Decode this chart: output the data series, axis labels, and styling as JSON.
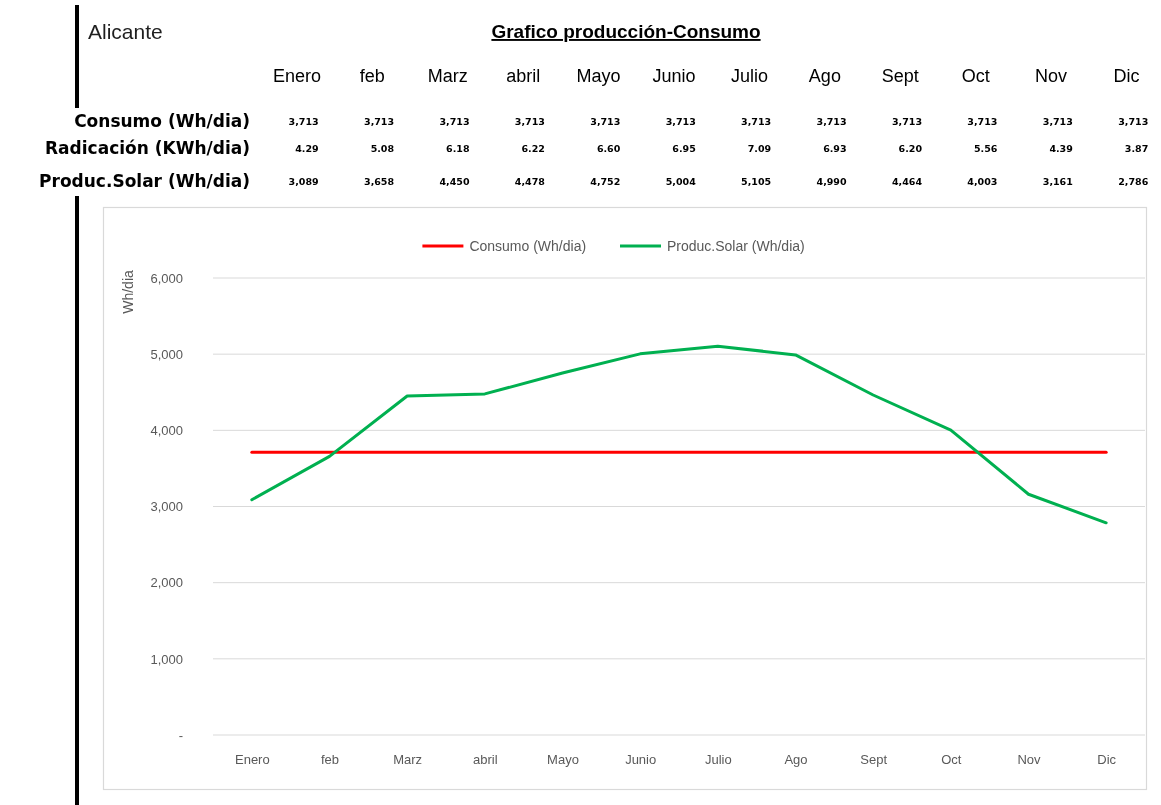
{
  "chart_data": [
    {
      "type": "heatmap",
      "title": "Grafico producción-Consumo",
      "subtitle": "Alicante",
      "categories": [
        "Enero",
        "feb",
        "Marz",
        "abril",
        "Mayo",
        "Junio",
        "Julio",
        "Ago",
        "Sept",
        "Oct",
        "Nov",
        "Dic"
      ],
      "y_categories": [
        "Consumo (Wh/dia)",
        "Radicación (KWh/dia)",
        "Produc.Solar (Wh/dia)"
      ],
      "cells": [
        [
          3713,
          3713,
          3713,
          3713,
          3713,
          3713,
          3713,
          3713,
          3713,
          3713,
          3713,
          3713
        ],
        [
          4.29,
          5.08,
          6.18,
          6.22,
          6.6,
          6.95,
          7.09,
          6.93,
          6.2,
          5.56,
          4.39,
          3.87
        ],
        [
          3089,
          3658,
          4450,
          4478,
          4752,
          5004,
          5105,
          4990,
          4464,
          4003,
          3161,
          2786
        ]
      ],
      "cell_labels": [
        [
          "3,713",
          "3,713",
          "3,713",
          "3,713",
          "3,713",
          "3,713",
          "3,713",
          "3,713",
          "3,713",
          "3,713",
          "3,713",
          "3,713"
        ],
        [
          "4.29",
          "5.08",
          "6.18",
          "6.22",
          "6.60",
          "6.95",
          "7.09",
          "6.93",
          "6.20",
          "5.56",
          "4.39",
          "3.87"
        ],
        [
          "3,089",
          "3,658",
          "4,450",
          "4,478",
          "4,752",
          "5,004",
          "5,105",
          "4,990",
          "4,464",
          "4,003",
          "3,161",
          "2,786"
        ]
      ]
    },
    {
      "type": "line",
      "ylabel": "Wh/dia",
      "categories": [
        "Enero",
        "feb",
        "Marz",
        "abril",
        "Mayo",
        "Junio",
        "Julio",
        "Ago",
        "Sept",
        "Oct",
        "Nov",
        "Dic"
      ],
      "series": [
        {
          "name": "Consumo (Wh/dia)",
          "color": "#ff0000",
          "values": [
            3713,
            3713,
            3713,
            3713,
            3713,
            3713,
            3713,
            3713,
            3713,
            3713,
            3713,
            3713
          ]
        },
        {
          "name": "Produc.Solar (Wh/dia)",
          "color": "#00b050",
          "values": [
            3089,
            3658,
            4450,
            4478,
            4752,
            5004,
            5105,
            4990,
            4464,
            4003,
            3161,
            2786
          ]
        }
      ],
      "ylim": [
        0,
        6000
      ],
      "yticks": [
        {
          "value": 0,
          "label": "-"
        },
        {
          "value": 1000,
          "label": "1,000"
        },
        {
          "value": 2000,
          "label": "2,000"
        },
        {
          "value": 3000,
          "label": "3,000"
        },
        {
          "value": 4000,
          "label": "4,000"
        },
        {
          "value": 5000,
          "label": "5,000"
        },
        {
          "value": 6000,
          "label": "6,000"
        }
      ],
      "grid": "y",
      "legend": "top"
    }
  ]
}
